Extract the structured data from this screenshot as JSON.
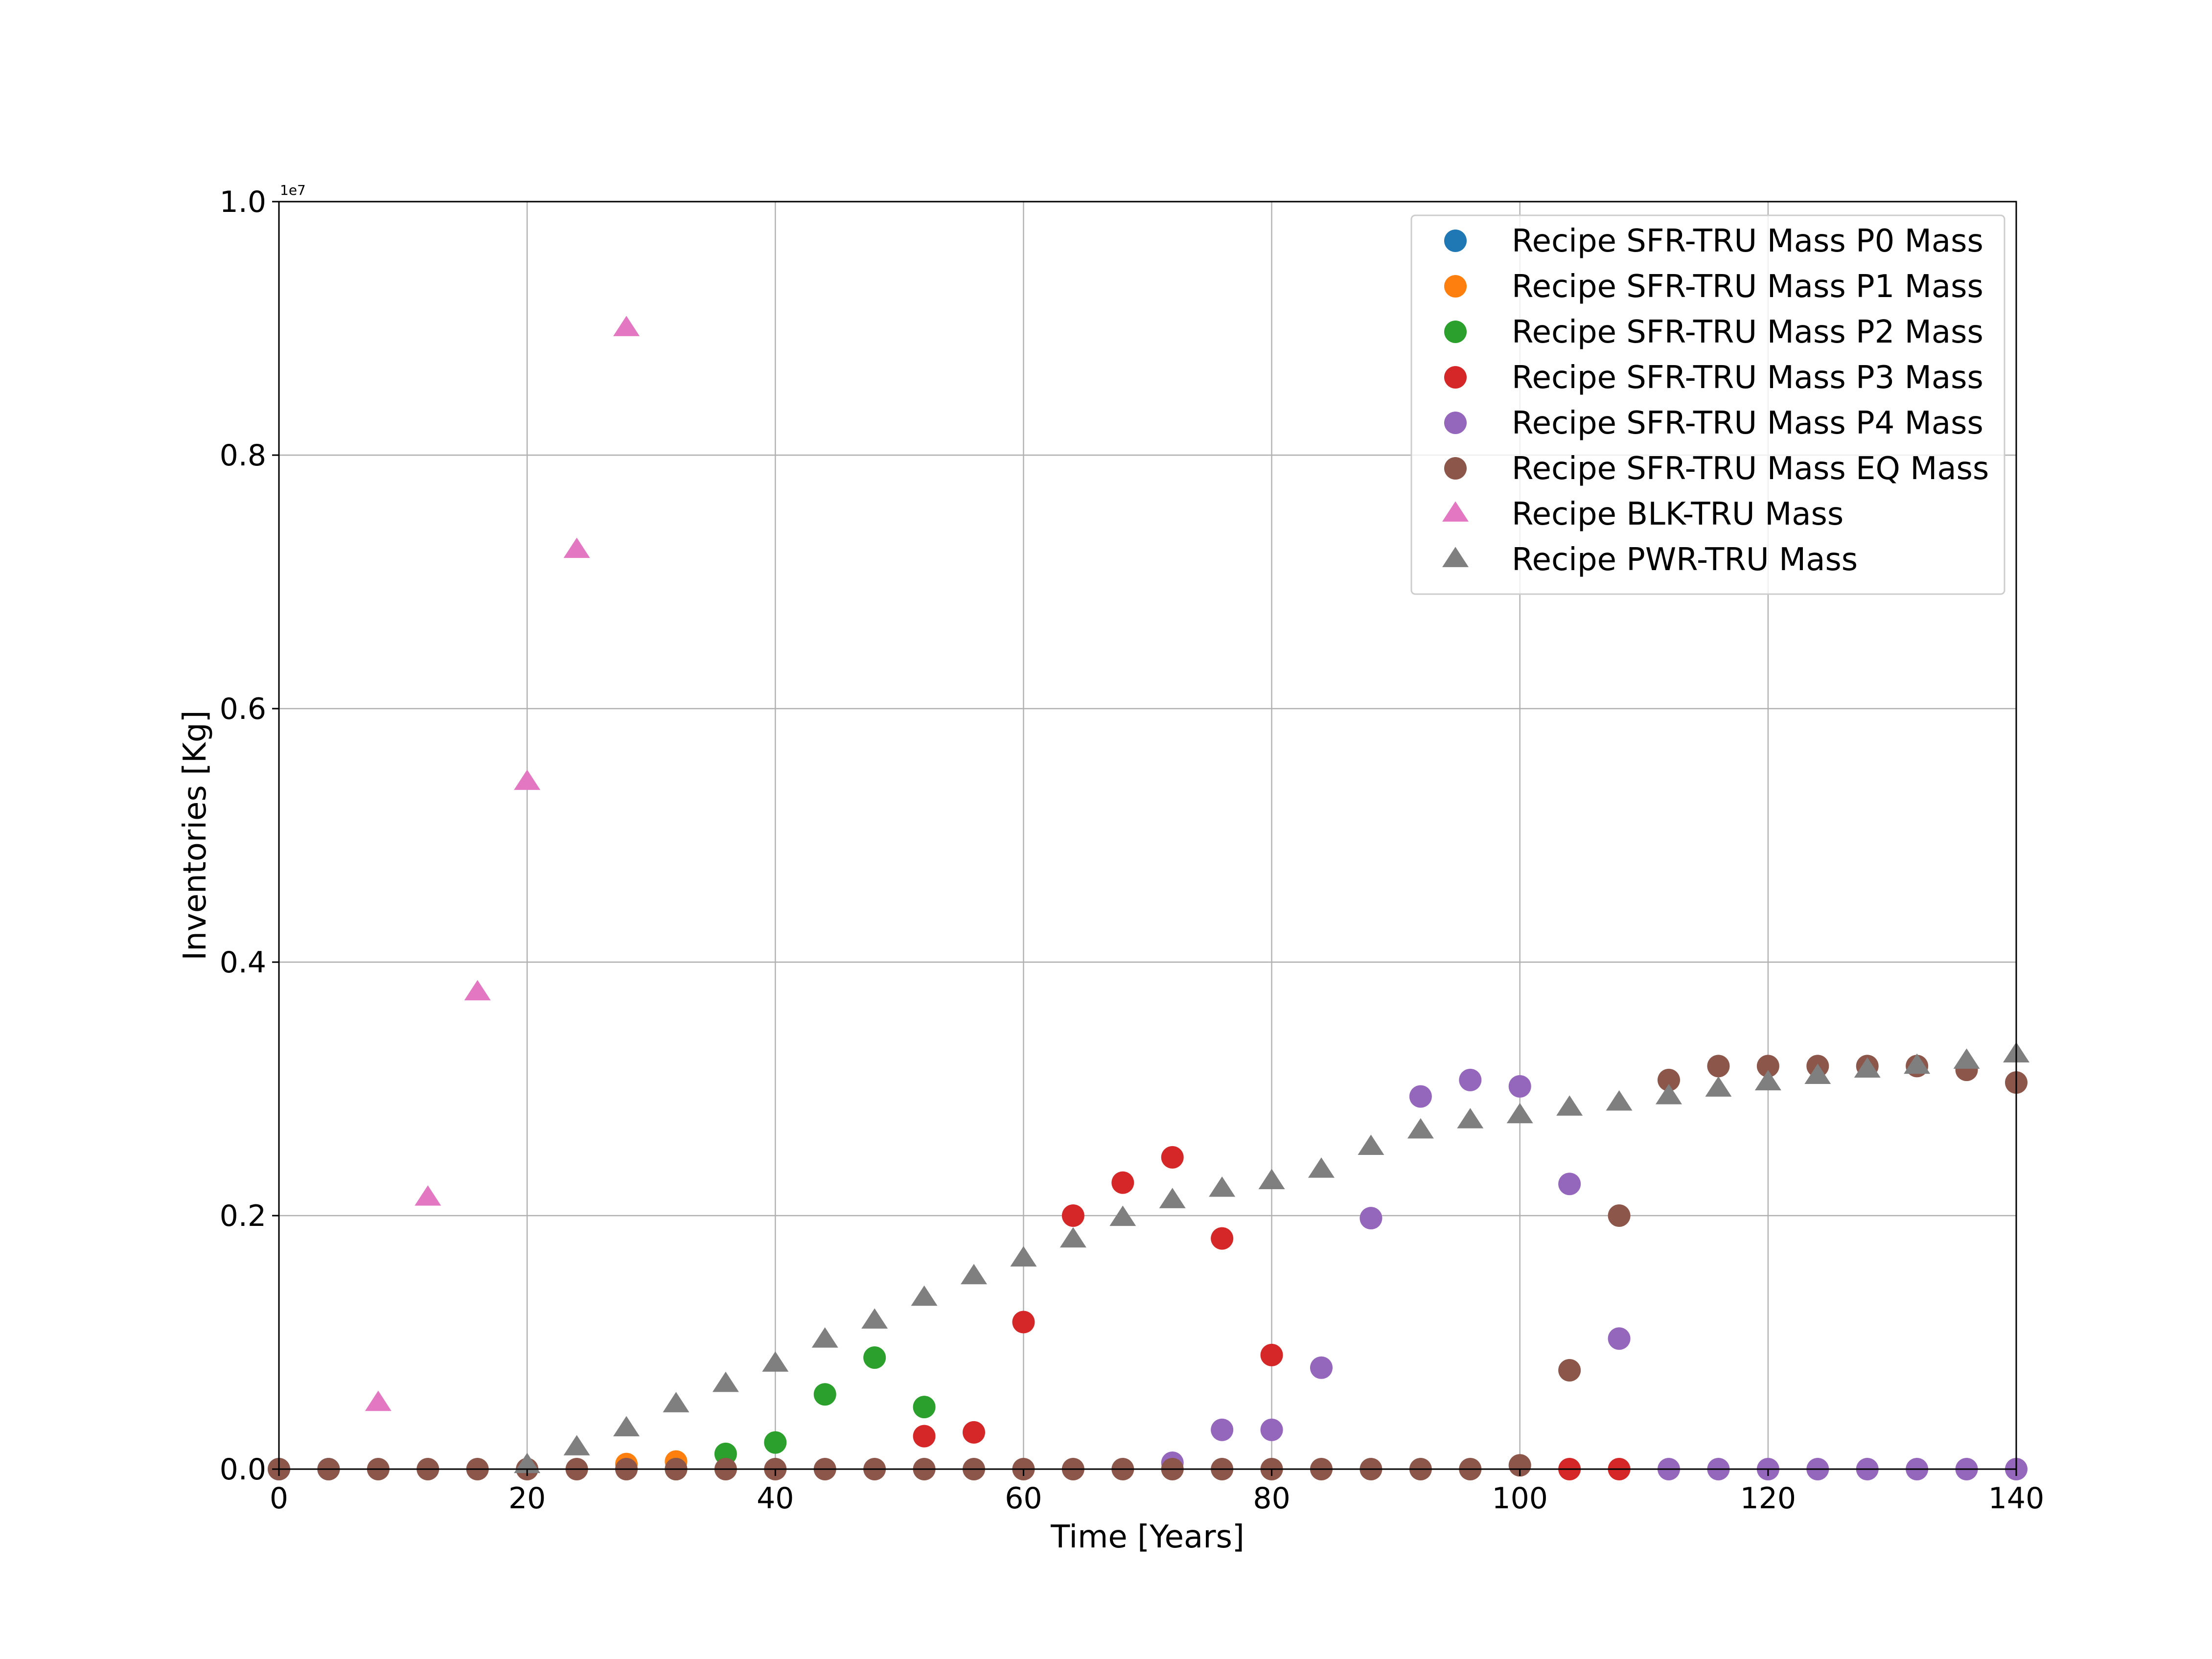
{
  "chart_data": {
    "type": "scatter",
    "title": "",
    "xlabel": "Time [Years]",
    "ylabel": "Inventories [Kg]",
    "y_offset_label": "1e7",
    "xlim": [
      0,
      140
    ],
    "ylim": [
      0,
      1.0
    ],
    "y_scale_factor": 10000000,
    "xticks": [
      0,
      20,
      40,
      60,
      80,
      100,
      120,
      140
    ],
    "xtick_labels": [
      "0",
      "20",
      "40",
      "60",
      "80",
      "100",
      "120",
      "140"
    ],
    "yticks": [
      0.0,
      0.2,
      0.4,
      0.6,
      0.8,
      1.0
    ],
    "ytick_labels": [
      "0.0",
      "0.2",
      "0.4",
      "0.6",
      "0.8",
      "1.0"
    ],
    "grid": true,
    "legend_position": "top-right",
    "series": [
      {
        "name": "Recipe SFR-TRU Mass P0 Mass",
        "marker": "circle",
        "color": "#1f77b4",
        "x": [
          0,
          4
        ],
        "y": [
          0,
          0
        ]
      },
      {
        "name": "Recipe SFR-TRU Mass P1 Mass",
        "marker": "circle",
        "color": "#ff7f0e",
        "x": [
          28,
          32
        ],
        "y": [
          0.004,
          0.006
        ]
      },
      {
        "name": "Recipe SFR-TRU Mass P2 Mass",
        "marker": "circle",
        "color": "#2ca02c",
        "x": [
          32,
          36,
          40,
          44,
          48,
          52
        ],
        "y": [
          0.0,
          0.012,
          0.021,
          0.059,
          0.088,
          0.049
        ]
      },
      {
        "name": "Recipe SFR-TRU Mass P3 Mass",
        "marker": "circle",
        "color": "#d62728",
        "x": [
          52,
          56,
          60,
          64,
          68,
          72,
          76,
          80,
          104,
          108
        ],
        "y": [
          0.026,
          0.029,
          0.116,
          0.2,
          0.226,
          0.246,
          0.182,
          0.09,
          0.0,
          0.0
        ]
      },
      {
        "name": "Recipe SFR-TRU Mass P4 Mass",
        "marker": "circle",
        "color": "#9467bd",
        "x": [
          72,
          76,
          80,
          84,
          88,
          92,
          96,
          100,
          104,
          108,
          112,
          116,
          120,
          124,
          128,
          132,
          136,
          140
        ],
        "y": [
          0.005,
          0.031,
          0.031,
          0.08,
          0.198,
          0.294,
          0.307,
          0.302,
          0.225,
          0.103,
          0.0,
          0.0,
          0.0,
          0.0,
          0.0,
          0.0,
          0.0,
          0.0
        ]
      },
      {
        "name": "Recipe SFR-TRU Mass EQ Mass",
        "marker": "circle",
        "color": "#8c564b",
        "x": [
          0,
          4,
          8,
          12,
          16,
          20,
          24,
          28,
          32,
          36,
          40,
          44,
          48,
          52,
          56,
          60,
          64,
          68,
          72,
          76,
          80,
          84,
          88,
          92,
          96,
          100,
          104,
          108,
          112,
          116,
          120,
          124,
          128,
          132,
          136,
          140
        ],
        "y": [
          0.0,
          0.0,
          0.0,
          0.0,
          0.0,
          0.0,
          0.0,
          0.0,
          0.0,
          0.0,
          0.0,
          0.0,
          0.0,
          0.0,
          0.0,
          0.0,
          0.0,
          0.0,
          0.0,
          0.0,
          0.0,
          0.0,
          0.0,
          0.0,
          0.0,
          0.003,
          0.078,
          0.2,
          0.307,
          0.318,
          0.318,
          0.318,
          0.318,
          0.318,
          0.315,
          0.305
        ]
      },
      {
        "name": "Recipe BLK-TRU Mass",
        "marker": "triangle",
        "color": "#e377c2",
        "x": [
          8,
          12,
          16,
          20,
          24,
          28
        ],
        "y": [
          0.052,
          0.214,
          0.376,
          0.542,
          0.725,
          0.9
        ]
      },
      {
        "name": "Recipe PWR-TRU Mass",
        "marker": "triangle",
        "color": "#7f7f7f",
        "x": [
          20,
          24,
          28,
          32,
          36,
          40,
          44,
          48,
          52,
          56,
          60,
          64,
          68,
          72,
          76,
          80,
          84,
          88,
          92,
          96,
          100,
          104,
          108,
          112,
          116,
          120,
          124,
          128,
          132,
          136,
          140
        ],
        "y": [
          0.003,
          0.017,
          0.032,
          0.051,
          0.067,
          0.083,
          0.102,
          0.117,
          0.135,
          0.152,
          0.166,
          0.181,
          0.198,
          0.212,
          0.221,
          0.227,
          0.236,
          0.254,
          0.267,
          0.275,
          0.279,
          0.285,
          0.289,
          0.294,
          0.3,
          0.305,
          0.31,
          0.315,
          0.318,
          0.322,
          0.327
        ]
      }
    ]
  }
}
